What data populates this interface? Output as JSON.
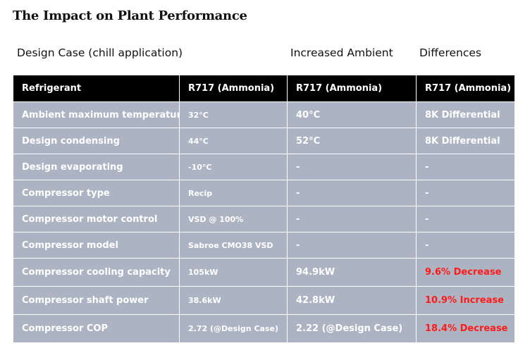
{
  "title": "The Impact on Plant Performance",
  "group_headers": {
    "design_case": "Design Case (chill application)",
    "increased_ambient": "Increased Ambient",
    "differences": "Differences"
  },
  "columns": [
    "Refrigerant",
    "R717 (Ammonia)",
    "R717 (Ammonia)",
    "R717 (Ammonia)"
  ],
  "rows": [
    {
      "label": "Ambient maximum temperature",
      "design": "32°C",
      "ambient": "40°C",
      "diff": "8K Differential",
      "highlight": false
    },
    {
      "label": "Design condensing",
      "design": "44°C",
      "ambient": "52°C",
      "diff": "8K Differential",
      "highlight": false
    },
    {
      "label": "Design evaporating",
      "design": "-10°C",
      "ambient": "-",
      "diff": "-",
      "highlight": false
    },
    {
      "label": "Compressor type",
      "design": "Recip",
      "ambient": "-",
      "diff": "-",
      "highlight": false
    },
    {
      "label": "Compressor motor control",
      "design": "VSD @ 100%",
      "ambient": "-",
      "diff": "-",
      "highlight": false
    },
    {
      "label": "Compressor model",
      "design": "Sabroe CMO38 VSD",
      "ambient": "-",
      "diff": "-",
      "highlight": false
    },
    {
      "label": "Compressor cooling capacity",
      "design": "105kW",
      "ambient": "94.9kW",
      "diff": "9.6% Decrease",
      "highlight": true
    },
    {
      "label": "Compressor shaft power",
      "design": "38.6kW",
      "ambient": "42.8kW",
      "diff": "10.9% Increase",
      "highlight": true
    },
    {
      "label": "Compressor COP",
      "design": "2.72 (@Design Case)",
      "ambient": "2.22 (@Design Case)",
      "diff": "18.4% Decrease",
      "highlight": true
    }
  ],
  "colors": {
    "header_bg": "#000000",
    "row_bg": "#acb3c2",
    "highlight_text": "#ff1a1a"
  }
}
